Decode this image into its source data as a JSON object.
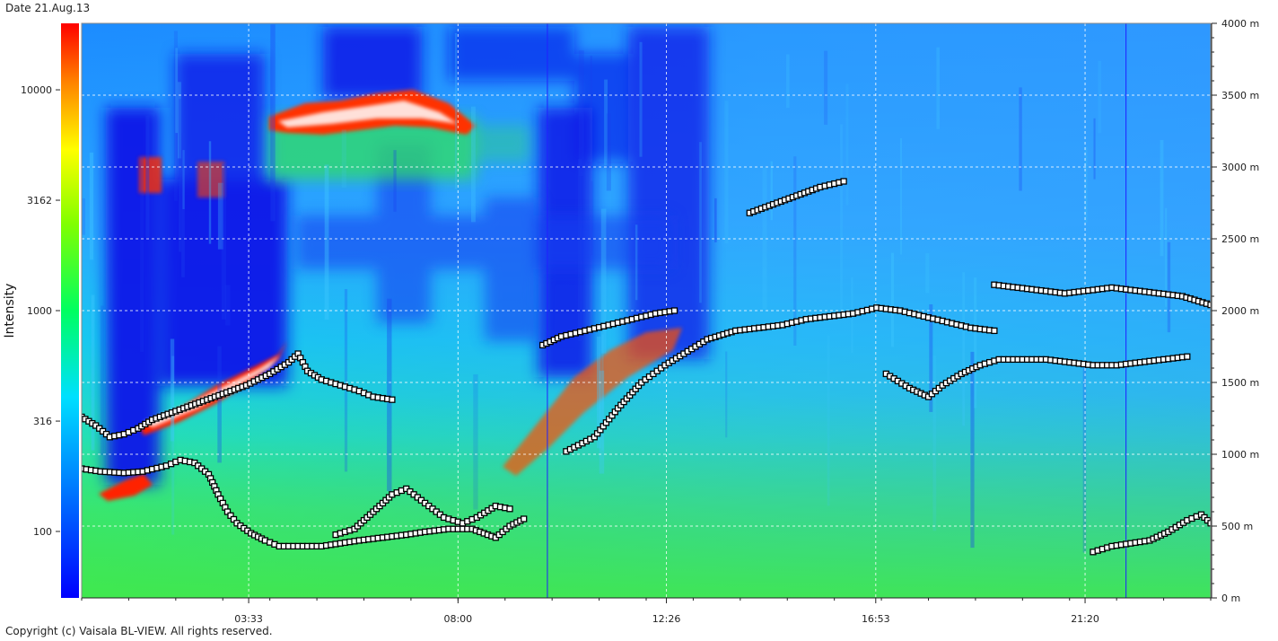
{
  "header": {
    "date_label": "Date 21.Aug.13"
  },
  "footer": {
    "copyright": "Copyright (c) Vaisala BL-VIEW. All rights reserved."
  },
  "colors": {
    "deep_blue": "#0010e0",
    "blue": "#2060ff",
    "sky": "#20b0ff",
    "cyan": "#00e8f0",
    "aqua_green": "#20e8a0",
    "green": "#30e030",
    "red": "#ff2000",
    "marker_fill": "#ffffff",
    "marker_stroke": "#000000",
    "time_line": "#2020ff"
  },
  "chart_data": {
    "type": "heatmap",
    "title": "",
    "xlabel": "",
    "ylabel_left": "Intensity",
    "ylabel_right": "",
    "colorbar": {
      "scale": "log",
      "ticks": [
        "10000",
        "3162",
        "1000",
        "316",
        "100"
      ],
      "colors_low_to_high": [
        "#0000ff",
        "#0080ff",
        "#00e0ff",
        "#00ff60",
        "#80ff00",
        "#ffff00",
        "#ff8000",
        "#ff0000"
      ]
    },
    "x_axis": {
      "unit": "hours",
      "range": [
        0,
        24
      ],
      "ticks": [
        {
          "hour": 3.55,
          "label": "03:33"
        },
        {
          "hour": 8.0,
          "label": "08:00"
        },
        {
          "hour": 12.43,
          "label": "12:26"
        },
        {
          "hour": 16.88,
          "label": "16:53"
        },
        {
          "hour": 21.33,
          "label": "21:20"
        }
      ]
    },
    "y_axis_right": {
      "unit": "m",
      "range": [
        0,
        4000
      ],
      "ticks": [
        {
          "value": 0,
          "label": "0 m"
        },
        {
          "value": 500,
          "label": "500 m"
        },
        {
          "value": 1000,
          "label": "1000 m"
        },
        {
          "value": 1500,
          "label": "1500 m"
        },
        {
          "value": 2000,
          "label": "2000 m"
        },
        {
          "value": 2500,
          "label": "2500 m"
        },
        {
          "value": 3000,
          "label": "3000 m"
        },
        {
          "value": 3500,
          "label": "3500 m"
        },
        {
          "value": 4000,
          "label": "4000 m"
        }
      ]
    },
    "grid": true,
    "vertical_markers_hour": [
      9.9,
      22.2
    ],
    "series": [
      {
        "points": [
          [
            0,
            1260
          ],
          [
            0.3,
            1200
          ],
          [
            0.6,
            1120
          ],
          [
            0.9,
            1140
          ],
          [
            1.2,
            1180
          ],
          [
            1.5,
            1240
          ],
          [
            2,
            1300
          ],
          [
            2.5,
            1360
          ],
          [
            3,
            1420
          ],
          [
            3.5,
            1480
          ],
          [
            4,
            1560
          ],
          [
            4.4,
            1640
          ],
          [
            4.6,
            1700
          ],
          [
            4.8,
            1580
          ],
          [
            5.1,
            1520
          ],
          [
            5.5,
            1480
          ],
          [
            5.9,
            1440
          ],
          [
            6.2,
            1400
          ],
          [
            6.6,
            1380
          ]
        ]
      },
      {
        "points": [
          [
            0,
            900
          ],
          [
            0.4,
            880
          ],
          [
            0.9,
            870
          ],
          [
            1.3,
            880
          ],
          [
            1.8,
            920
          ],
          [
            2.1,
            960
          ],
          [
            2.4,
            940
          ],
          [
            2.7,
            860
          ],
          [
            2.9,
            720
          ],
          [
            3.1,
            600
          ],
          [
            3.3,
            520
          ],
          [
            3.6,
            450
          ],
          [
            3.9,
            400
          ],
          [
            4.2,
            360
          ],
          [
            4.6,
            360
          ],
          [
            5.1,
            360
          ],
          [
            5.5,
            380
          ],
          [
            5.9,
            400
          ],
          [
            6.4,
            420
          ],
          [
            6.9,
            440
          ],
          [
            7.3,
            460
          ],
          [
            7.8,
            480
          ],
          [
            8.3,
            480
          ],
          [
            8.8,
            420
          ],
          [
            9.1,
            500
          ],
          [
            9.4,
            550
          ]
        ]
      },
      {
        "points": [
          [
            5.4,
            440
          ],
          [
            5.8,
            480
          ],
          [
            6.2,
            600
          ],
          [
            6.6,
            720
          ],
          [
            6.9,
            760
          ],
          [
            7.3,
            660
          ],
          [
            7.7,
            560
          ],
          [
            8.1,
            520
          ],
          [
            8.4,
            560
          ],
          [
            8.8,
            640
          ],
          [
            9.1,
            620
          ]
        ]
      },
      {
        "points": [
          [
            10.3,
            1020
          ],
          [
            10.9,
            1120
          ],
          [
            11.4,
            1320
          ],
          [
            11.9,
            1500
          ],
          [
            12.4,
            1620
          ],
          [
            12.8,
            1700
          ],
          [
            13.3,
            1800
          ],
          [
            13.9,
            1860
          ],
          [
            14.4,
            1880
          ],
          [
            14.9,
            1900
          ],
          [
            15.4,
            1940
          ],
          [
            15.9,
            1960
          ],
          [
            16.4,
            1980
          ],
          [
            16.9,
            2020
          ],
          [
            17.4,
            2000
          ],
          [
            17.9,
            1960
          ],
          [
            18.4,
            1920
          ],
          [
            18.9,
            1880
          ],
          [
            19.4,
            1860
          ]
        ]
      },
      {
        "points": [
          [
            17.1,
            1560
          ],
          [
            17.6,
            1460
          ],
          [
            18.0,
            1400
          ],
          [
            18.3,
            1480
          ],
          [
            18.7,
            1560
          ],
          [
            19.1,
            1620
          ],
          [
            19.5,
            1660
          ],
          [
            20.0,
            1660
          ],
          [
            20.5,
            1660
          ],
          [
            21.0,
            1640
          ],
          [
            21.5,
            1620
          ],
          [
            22.0,
            1620
          ],
          [
            22.5,
            1640
          ],
          [
            23.0,
            1660
          ],
          [
            23.5,
            1680
          ]
        ]
      },
      {
        "points": [
          [
            19.4,
            2180
          ],
          [
            19.9,
            2160
          ],
          [
            20.4,
            2140
          ],
          [
            20.9,
            2120
          ],
          [
            21.4,
            2140
          ],
          [
            21.9,
            2160
          ],
          [
            22.4,
            2140
          ],
          [
            22.9,
            2120
          ],
          [
            23.4,
            2100
          ],
          [
            24,
            2040
          ]
        ]
      },
      {
        "points": [
          [
            21.5,
            320
          ],
          [
            21.9,
            360
          ],
          [
            22.3,
            380
          ],
          [
            22.7,
            400
          ],
          [
            23.1,
            460
          ],
          [
            23.5,
            540
          ],
          [
            23.8,
            580
          ],
          [
            24,
            520
          ]
        ]
      },
      {
        "points": [
          [
            9.8,
            1760
          ],
          [
            10.2,
            1820
          ],
          [
            10.7,
            1860
          ],
          [
            11.2,
            1900
          ],
          [
            11.7,
            1940
          ],
          [
            12.2,
            1980
          ],
          [
            12.6,
            2000
          ]
        ]
      },
      {
        "points": [
          [
            14.2,
            2680
          ],
          [
            14.7,
            2740
          ],
          [
            15.2,
            2800
          ],
          [
            15.7,
            2860
          ],
          [
            16.2,
            2900
          ]
        ]
      }
    ]
  }
}
